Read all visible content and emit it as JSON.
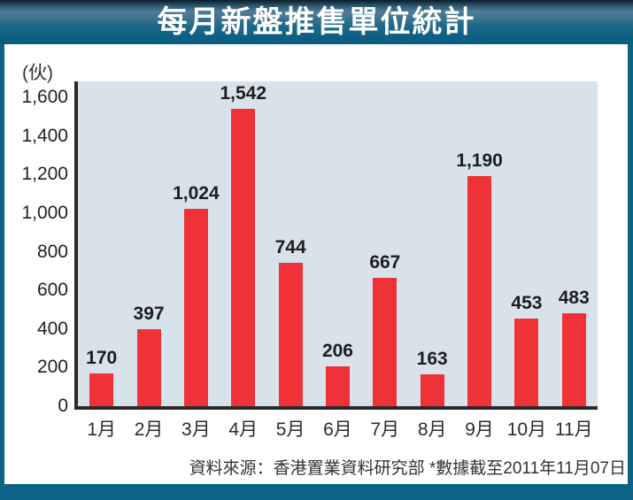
{
  "header": {
    "title": "每月新盤推售單位統計"
  },
  "footer": {
    "source": "資料來源：香港置業資料研究部 *數據截至2011年11月07日"
  },
  "chart_data": {
    "type": "bar",
    "title": "每月新盤推售單位統計",
    "unit_label": "(伙)",
    "ylabel": "(伙)",
    "xlabel": "",
    "categories": [
      "1月",
      "2月",
      "3月",
      "4月",
      "5月",
      "6月",
      "7月",
      "8月",
      "9月",
      "10月",
      "11月"
    ],
    "values": [
      170,
      397,
      1024,
      1542,
      744,
      206,
      667,
      163,
      1190,
      453,
      483
    ],
    "value_labels": [
      "170",
      "397",
      "1,024",
      "1,542",
      "744",
      "206",
      "667",
      "163",
      "1,190",
      "453",
      "483"
    ],
    "y_tick_values": [
      0,
      200,
      400,
      600,
      800,
      1000,
      1200,
      1400,
      1600
    ],
    "y_tick_labels": [
      "0",
      "200",
      "400",
      "600",
      "800",
      "1,000",
      "1,200",
      "1,400",
      "1,600"
    ],
    "ylim": [
      0,
      1683
    ],
    "grid": false,
    "legend": null,
    "bar_color": "#ee3238",
    "plot_background": "#d8e2ea"
  },
  "colors": {
    "frame_teal": "#0c6386",
    "bar_red": "#ee3238",
    "plot_bg": "#d8e2ea",
    "axis": "#2a2a2a",
    "title_text": "#ffffff",
    "label_text": "#222222"
  }
}
